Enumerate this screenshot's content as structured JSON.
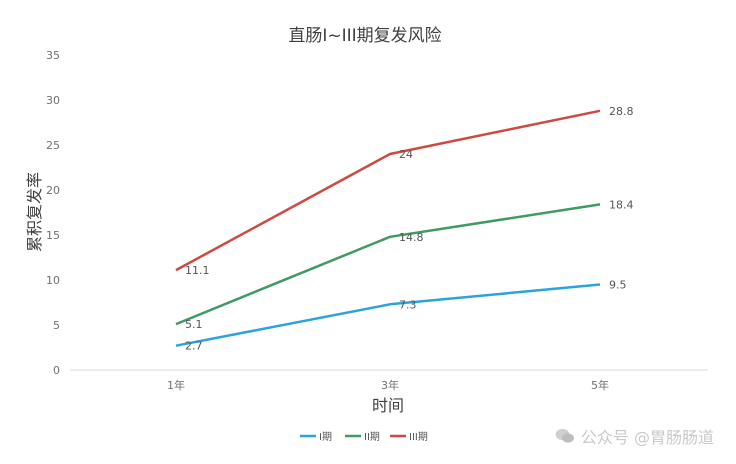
{
  "chart_data": {
    "type": "line",
    "title": "直肠I~III期复发风险",
    "xlabel": "时间",
    "ylabel": "累积复发率",
    "categories": [
      "1年",
      "3年",
      "5年"
    ],
    "ylim": [
      0,
      35
    ],
    "yticks": [
      0,
      5,
      10,
      15,
      20,
      25,
      30,
      35
    ],
    "grid": false,
    "legend_position": "bottom",
    "series": [
      {
        "name": "I期",
        "color": "#2ca3dd",
        "values": [
          2.7,
          7.3,
          9.5
        ],
        "labels": [
          "2.7",
          "7.3",
          "9.5"
        ]
      },
      {
        "name": "II期",
        "color": "#3f9a64",
        "values": [
          5.1,
          14.8,
          18.4
        ],
        "labels": [
          "5.1",
          "14.8",
          "18.4"
        ]
      },
      {
        "name": "III期",
        "color": "#cc4a41",
        "values": [
          11.1,
          24,
          28.8
        ],
        "labels": [
          "11.1",
          "24",
          "28.8"
        ]
      }
    ]
  },
  "watermark": {
    "text": "公众号 @胃肠肠道",
    "icon": "wechat-icon"
  }
}
